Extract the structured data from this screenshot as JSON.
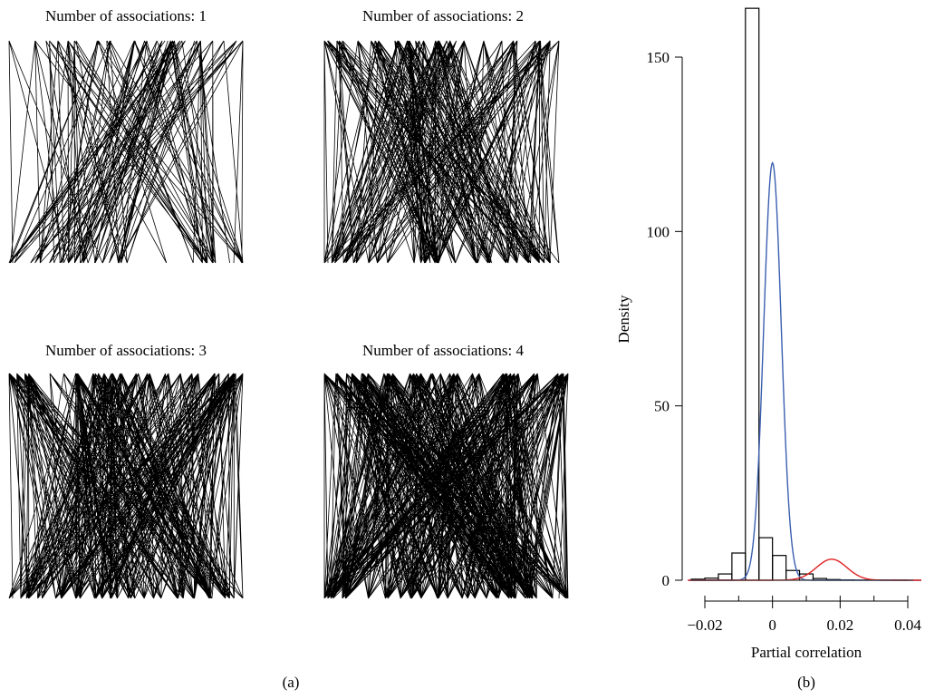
{
  "chart_data": [
    {
      "type": "network",
      "panel": "(a)",
      "subplots": [
        {
          "title": "Number of associations: 1"
        },
        {
          "title": "Number of associations: 2"
        },
        {
          "title": "Number of associations: 3"
        },
        {
          "title": "Number of associations: 4"
        }
      ]
    },
    {
      "type": "bar",
      "panel": "(b)",
      "xlabel": "Partial correlation",
      "ylabel": "Density",
      "xlim": [
        -0.025,
        0.044
      ],
      "ylim": [
        0,
        164
      ],
      "xticks": [
        -0.02,
        0,
        0.02,
        0.04
      ],
      "xtick_labels": [
        "−0.02",
        "0",
        "0.02",
        "0.04"
      ],
      "yticks": [
        0,
        50,
        100,
        150
      ],
      "ytick_labels": [
        "0",
        "50",
        "100",
        "150"
      ],
      "histogram": {
        "bin_edges": [
          -0.024,
          -0.02,
          -0.016,
          -0.012,
          -0.008,
          -0.004,
          0.0,
          0.004,
          0.008,
          0.012,
          0.016,
          0.02,
          0.024,
          0.028,
          0.032,
          0.036,
          0.04,
          0.044
        ],
        "density": [
          0.3,
          0.6,
          1.8,
          7.8,
          164,
          12.2,
          7.1,
          2.8,
          1.8,
          0.5,
          0.2,
          0.1,
          0.05,
          0.05,
          0.05,
          0.05,
          0.0
        ]
      },
      "series": [
        {
          "color": "#3a5fb0",
          "kind": "normal",
          "mean": 0.0,
          "sd": 0.0026,
          "weight": 0.78
        },
        {
          "color": "#e02020",
          "kind": "normal",
          "mean": 0.0175,
          "sd": 0.0045,
          "weight": 0.068
        }
      ]
    }
  ]
}
